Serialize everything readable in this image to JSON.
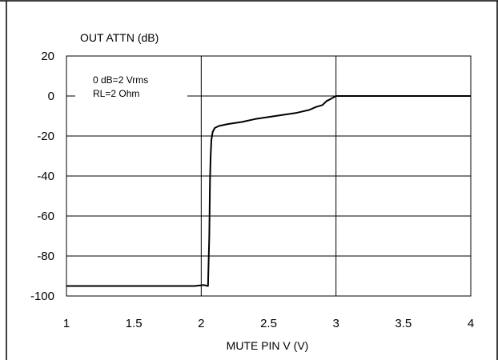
{
  "chart_data": {
    "type": "line",
    "title": "OUT ATTN (dB)",
    "xlabel": "MUTE PIN V (V)",
    "ylabel": "",
    "xlim": [
      1,
      4
    ],
    "ylim": [
      -100,
      20
    ],
    "x_ticks": [
      "1",
      "1.5",
      "2",
      "2.5",
      "3",
      "3.5",
      "4"
    ],
    "y_ticks": [
      "20",
      "0",
      "-20",
      "-40",
      "-60",
      "-80",
      "-100"
    ],
    "grid": true,
    "annotations": [
      "0 dB=2 Vrms",
      "RL=2 Ohm"
    ],
    "series": [
      {
        "color": "#000000",
        "x": [
          1.0,
          1.5,
          1.95,
          2.02,
          2.05,
          2.06,
          2.065,
          2.07,
          2.075,
          2.085,
          2.1,
          2.13,
          2.2,
          2.3,
          2.4,
          2.5,
          2.6,
          2.7,
          2.8,
          2.85,
          2.9,
          2.93,
          2.96,
          3.0,
          3.02,
          3.5,
          4.0
        ],
        "y": [
          -95,
          -95,
          -95,
          -94.5,
          -95,
          -70,
          -42,
          -30,
          -22,
          -18,
          -16,
          -15,
          -14,
          -13,
          -11.5,
          -10.5,
          -9.5,
          -8.5,
          -7,
          -5.5,
          -4.5,
          -2.5,
          -1.5,
          0,
          0,
          0,
          0
        ]
      }
    ]
  }
}
